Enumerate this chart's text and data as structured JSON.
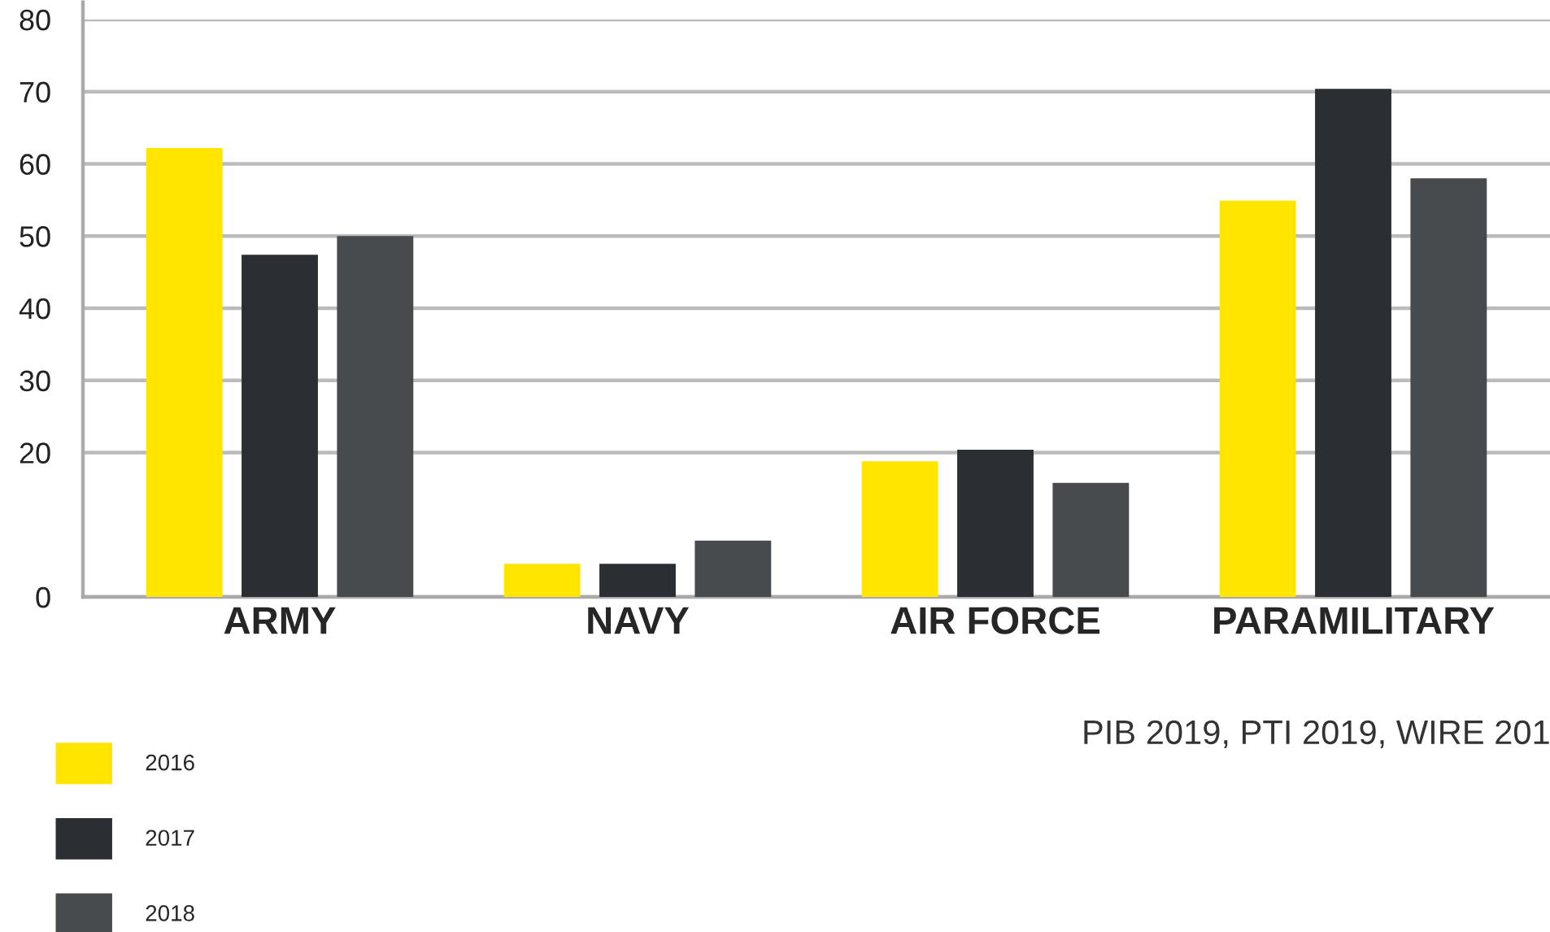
{
  "chart_data": {
    "type": "bar",
    "categories": [
      "ARMY",
      "NAVY",
      "AIR FORCE",
      "PARAMILITARY"
    ],
    "series": [
      {
        "name": "2016",
        "color": "#ffe500",
        "values": [
          62.2,
          4.6,
          18.8,
          54.9
        ]
      },
      {
        "name": "2017",
        "color": "#2b2e32",
        "values": [
          47.4,
          4.6,
          20.4,
          70.4
        ]
      },
      {
        "name": "2018",
        "color": "#484b4e",
        "values": [
          50.0,
          7.8,
          15.8,
          58.0
        ]
      }
    ],
    "ylim": [
      0,
      80
    ],
    "yticks": [
      0,
      20,
      30,
      40,
      50,
      60,
      70,
      80
    ],
    "grid": "y",
    "legend": "bottom left",
    "annotations": [
      "PIB 2019, PTI 2019, WIRE 201"
    ]
  }
}
